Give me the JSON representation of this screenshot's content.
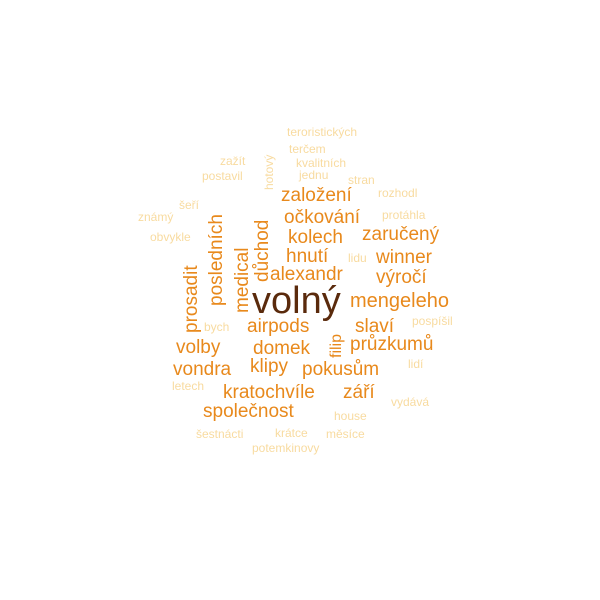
{
  "colors": {
    "darkest": "#5a2a0c",
    "dark": "#e8891c",
    "medium": "#f5a93a",
    "light": "#f8dba0"
  },
  "words": [
    {
      "text": "volný",
      "color": "darkest"
    },
    {
      "text": "mengeleho",
      "color": "dark"
    },
    {
      "text": "založení",
      "color": "dark"
    },
    {
      "text": "očkování",
      "color": "dark"
    },
    {
      "text": "kolech",
      "color": "dark"
    },
    {
      "text": "zaručený",
      "color": "dark"
    },
    {
      "text": "hnutí",
      "color": "dark"
    },
    {
      "text": "winner",
      "color": "dark"
    },
    {
      "text": "alexandr",
      "color": "dark"
    },
    {
      "text": "výročí",
      "color": "dark"
    },
    {
      "text": "airpods",
      "color": "dark"
    },
    {
      "text": "slaví",
      "color": "dark"
    },
    {
      "text": "volby",
      "color": "dark"
    },
    {
      "text": "domek",
      "color": "dark"
    },
    {
      "text": "průzkumů",
      "color": "dark"
    },
    {
      "text": "vondra",
      "color": "dark"
    },
    {
      "text": "klipy",
      "color": "dark"
    },
    {
      "text": "pokusům",
      "color": "dark"
    },
    {
      "text": "kratochvíle",
      "color": "dark"
    },
    {
      "text": "září",
      "color": "dark"
    },
    {
      "text": "společnost",
      "color": "dark"
    },
    {
      "text": "důchod",
      "color": "dark"
    },
    {
      "text": "medical",
      "color": "dark"
    },
    {
      "text": "posledních",
      "color": "dark"
    },
    {
      "text": "prosadit",
      "color": "dark"
    },
    {
      "text": "filip",
      "color": "dark"
    },
    {
      "text": "teroristických",
      "color": "light"
    },
    {
      "text": "terčem",
      "color": "light"
    },
    {
      "text": "kvalitních",
      "color": "light"
    },
    {
      "text": "zažít",
      "color": "light"
    },
    {
      "text": "jednu",
      "color": "light"
    },
    {
      "text": "postavil",
      "color": "light"
    },
    {
      "text": "stran",
      "color": "light"
    },
    {
      "text": "rozhodl",
      "color": "light"
    },
    {
      "text": "šeří",
      "color": "light"
    },
    {
      "text": "známý",
      "color": "light"
    },
    {
      "text": "protáhla",
      "color": "light"
    },
    {
      "text": "obvykle",
      "color": "light"
    },
    {
      "text": "lidu",
      "color": "light"
    },
    {
      "text": "bych",
      "color": "light"
    },
    {
      "text": "pospíšil",
      "color": "light"
    },
    {
      "text": "lidí",
      "color": "light"
    },
    {
      "text": "letech",
      "color": "light"
    },
    {
      "text": "house",
      "color": "light"
    },
    {
      "text": "vydává",
      "color": "light"
    },
    {
      "text": "šestnácti",
      "color": "light"
    },
    {
      "text": "krátce",
      "color": "light"
    },
    {
      "text": "měsíce",
      "color": "light"
    },
    {
      "text": "potemkinovy",
      "color": "light"
    },
    {
      "text": "hotový",
      "color": "light"
    }
  ]
}
